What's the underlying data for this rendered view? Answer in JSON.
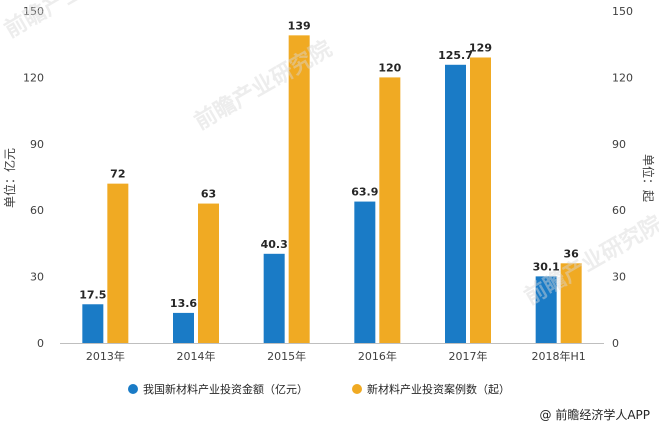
{
  "chart_data": {
    "type": "bar",
    "categories": [
      "2013年",
      "2014年",
      "2015年",
      "2016年",
      "2017年",
      "2018年H1"
    ],
    "series": [
      {
        "name": "我国新材料产业投资金额（亿元）",
        "values": [
          17.5,
          13.6,
          40.3,
          63.9,
          125.7,
          30.1
        ],
        "color": "#1a7bc6",
        "axis": "left"
      },
      {
        "name": "新材料产业投资案例数（起）",
        "values": [
          72,
          63,
          139,
          120,
          129,
          36
        ],
        "color": "#f0aa23",
        "axis": "right"
      }
    ],
    "ylabel_left": "单位：亿元",
    "ylabel_right": "单位：起",
    "ylim": [
      0,
      150
    ],
    "yticks": [
      0,
      30,
      60,
      90,
      120,
      150
    ],
    "grid": false,
    "legend_position": "bottom"
  },
  "watermark": "前瞻产业研究院",
  "credit": "@ 前瞻经济学人APP"
}
